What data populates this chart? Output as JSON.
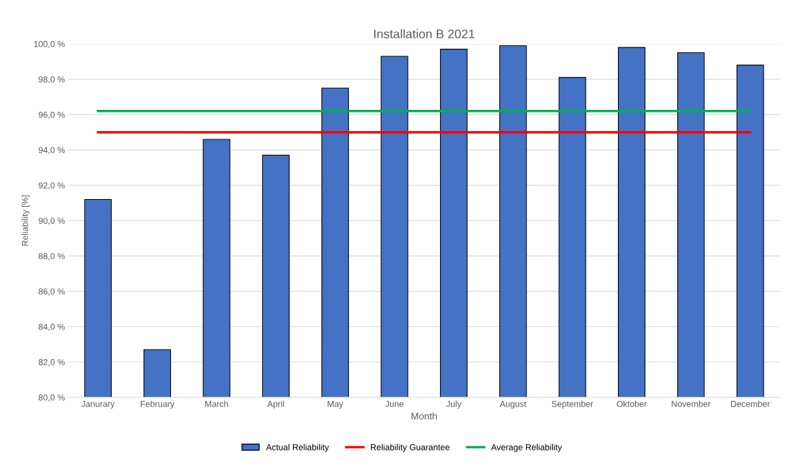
{
  "chart_data": {
    "type": "bar",
    "title": "Installation B 2021",
    "xlabel": "Month",
    "ylabel": "Reliability [%]",
    "categories": [
      "Janurary",
      "February",
      "March",
      "April",
      "May",
      "June",
      "July",
      "August",
      "September",
      "Oktober",
      "November",
      "December"
    ],
    "series": [
      {
        "name": "Actual Reliability",
        "color": "#4472c4",
        "values": [
          91.2,
          82.7,
          94.6,
          93.7,
          97.5,
          99.3,
          99.7,
          99.9,
          98.1,
          99.8,
          99.5,
          98.8
        ]
      },
      {
        "name": "Reliability Guarantee",
        "type": "line",
        "color": "#ff0000",
        "values": [
          95.0,
          95.0,
          95.0,
          95.0,
          95.0,
          95.0,
          95.0,
          95.0,
          95.0,
          95.0,
          95.0,
          95.0
        ]
      },
      {
        "name": "Average Reliability",
        "type": "line",
        "color": "#00b050",
        "values": [
          96.2,
          96.2,
          96.2,
          96.2,
          96.2,
          96.2,
          96.2,
          96.2,
          96.2,
          96.2,
          96.2,
          96.2
        ]
      }
    ],
    "ylim": [
      80,
      100
    ],
    "yticks": [
      {
        "value": 80,
        "label": "80,0 %"
      },
      {
        "value": 82,
        "label": "82,0 %"
      },
      {
        "value": 84,
        "label": "84,0 %"
      },
      {
        "value": 86,
        "label": "86,0 %"
      },
      {
        "value": 88,
        "label": "88,0 %"
      },
      {
        "value": 90,
        "label": "90,0 %"
      },
      {
        "value": 92,
        "label": "92,0 %"
      },
      {
        "value": 94,
        "label": "94,0 %"
      },
      {
        "value": 96,
        "label": "96,0 %"
      },
      {
        "value": 98,
        "label": "98,0 %"
      },
      {
        "value": 100,
        "label": "100,0 %"
      }
    ],
    "grid": "y",
    "legend": "bottom",
    "marker": "none",
    "line_style": "solid"
  }
}
